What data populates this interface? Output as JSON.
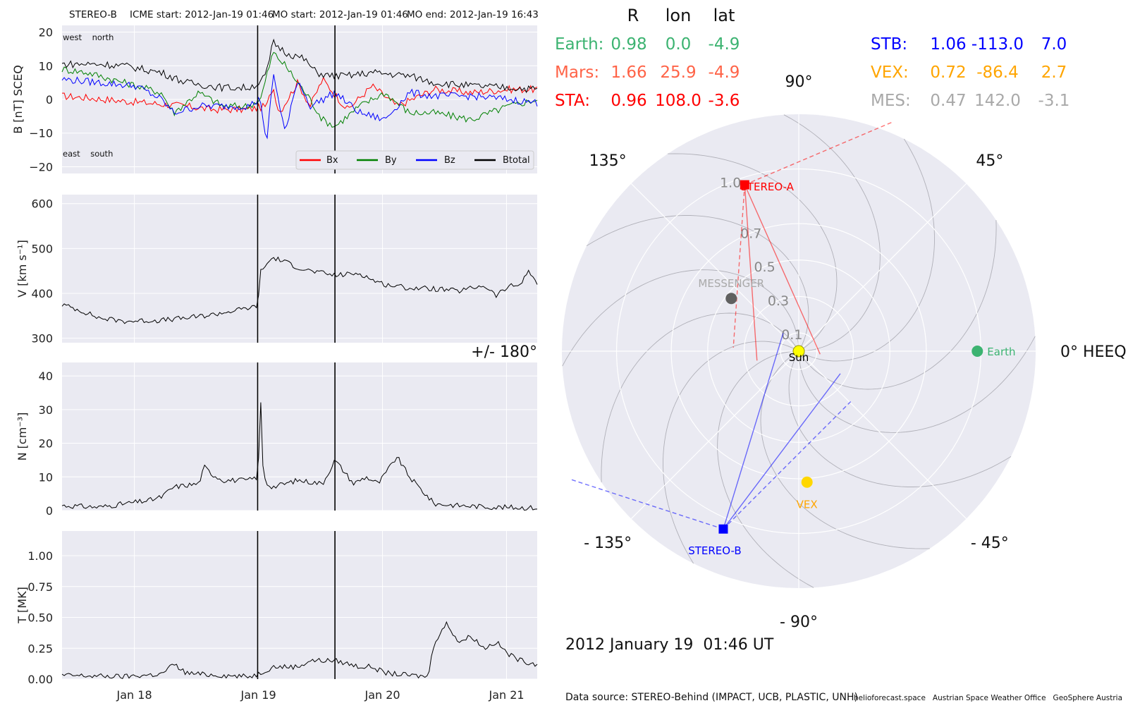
{
  "header": {
    "spacecraft": "STEREO-B",
    "icme_start": "ICME start: 2012-Jan-19 01:46",
    "mo_start": "MO start: 2012-Jan-19 01:46",
    "mo_end": "MO end: 2012-Jan-19 16:43"
  },
  "colors": {
    "bx": "#ff0000",
    "by": "#008000",
    "bz": "#0000ff",
    "bt": "#000000",
    "panel_bg": "#eaeaf2",
    "grid": "#ffffff",
    "sta": "#ff0000",
    "stb": "#0000ff",
    "earth": "#3cb371",
    "mars": "#ff6347",
    "vex": "#ffa500",
    "mes": "#a9a9a9"
  },
  "chart_data": [
    {
      "type": "line",
      "panel": "magnetic field",
      "ylabel": "B [nT] SCEQ",
      "ylim": [
        -22,
        22
      ],
      "yticks": [
        "20",
        "10",
        "0",
        "−10",
        "−20"
      ],
      "ytick_values": [
        20,
        10,
        0,
        -10,
        -20
      ],
      "xlim_days": [
        "2012-01-17 10:00",
        "2012-01-21 06:00"
      ],
      "corner_labels": {
        "top_left": "west    north",
        "bottom_left": "east    south"
      },
      "legend": {
        "position": "lower right",
        "entries": [
          "Bx",
          "By",
          "Bz",
          "Btotal"
        ]
      },
      "series": [
        {
          "name": "Bx",
          "x": [
            0,
            0.2,
            0.5,
            1.0,
            1.2,
            1.5,
            1.65,
            1.7,
            1.75,
            1.9,
            2.0,
            2.1,
            2.3,
            2.5,
            2.7,
            3.0,
            3.3,
            3.6,
            3.83
          ],
          "y": [
            1,
            0.5,
            -0.5,
            -2,
            -3,
            -3,
            -2,
            4,
            -4,
            5,
            -2,
            6,
            -3,
            4,
            -2,
            3,
            2,
            3,
            3
          ]
        },
        {
          "name": "By",
          "x": [
            0,
            0.2,
            0.5,
            0.8,
            0.9,
            1.1,
            1.3,
            1.5,
            1.6,
            1.7,
            1.8,
            1.9,
            2.0,
            2.1,
            2.2,
            2.4,
            2.6,
            2.8,
            3.0,
            3.3,
            3.6,
            3.83
          ],
          "y": [
            9,
            8,
            5,
            2,
            -4,
            2,
            -2,
            -2,
            0,
            14,
            10,
            5,
            0,
            -6,
            -8,
            -2,
            2,
            -4,
            -4,
            -6,
            -2,
            0
          ]
        },
        {
          "name": "Bz",
          "x": [
            0,
            0.3,
            0.6,
            0.8,
            0.9,
            1.1,
            1.3,
            1.5,
            1.6,
            1.65,
            1.7,
            1.8,
            1.9,
            2.0,
            2.2,
            2.4,
            2.6,
            2.8,
            3.0,
            3.3,
            3.6,
            3.83
          ],
          "y": [
            6,
            5,
            4,
            0,
            -4,
            -2,
            -2,
            -2,
            0,
            -14,
            8,
            -10,
            6,
            -2,
            2,
            -4,
            -6,
            2,
            1,
            1,
            0,
            -1
          ]
        },
        {
          "name": "Btotal",
          "x": [
            0,
            0.3,
            0.5,
            0.8,
            1.0,
            1.3,
            1.5,
            1.6,
            1.65,
            1.7,
            1.8,
            1.95,
            2.05,
            2.15,
            2.3,
            2.5,
            2.8,
            3.0,
            3.3,
            3.6,
            3.83
          ],
          "y": [
            10.5,
            10.5,
            10,
            8,
            5,
            3.5,
            3.5,
            5,
            8,
            17,
            14,
            12,
            8,
            7,
            7,
            8,
            7,
            5,
            4,
            3.5,
            3
          ]
        }
      ]
    },
    {
      "type": "line",
      "panel": "speed",
      "ylabel": "V [km s⁻¹]",
      "ylim": [
        290,
        620
      ],
      "yticks": [
        "600",
        "500",
        "400",
        "300"
      ],
      "ytick_values": [
        600,
        500,
        400,
        300
      ],
      "series": [
        {
          "name": "V",
          "x": [
            0,
            0.15,
            0.3,
            0.5,
            0.8,
            1.0,
            1.2,
            1.4,
            1.55,
            1.58,
            1.6,
            1.7,
            1.8,
            1.9,
            2.0,
            2.2,
            2.4,
            2.5,
            2.6,
            2.8,
            3.0,
            3.2,
            3.4,
            3.5,
            3.6,
            3.7,
            3.75,
            3.83
          ],
          "y": [
            375,
            362,
            345,
            338,
            340,
            345,
            352,
            362,
            370,
            375,
            450,
            480,
            470,
            458,
            450,
            440,
            445,
            430,
            420,
            412,
            410,
            405,
            418,
            395,
            415,
            420,
            450,
            425
          ]
        }
      ]
    },
    {
      "type": "line",
      "panel": "density",
      "ylabel": "N [cm⁻³]",
      "ylim": [
        0,
        44
      ],
      "yticks": [
        "40",
        "30",
        "20",
        "10",
        "0"
      ],
      "ytick_values": [
        40,
        30,
        20,
        10,
        0
      ],
      "series": [
        {
          "name": "N",
          "x": [
            0,
            0.3,
            0.5,
            0.7,
            0.8,
            0.9,
            1.1,
            1.15,
            1.2,
            1.3,
            1.5,
            1.58,
            1.6,
            1.62,
            1.65,
            1.7,
            1.9,
            2.1,
            2.2,
            2.35,
            2.45,
            2.55,
            2.7,
            2.8,
            2.85,
            2.95,
            3.0,
            3.2,
            3.5,
            3.83
          ],
          "y": [
            1.5,
            1.0,
            2.0,
            3.0,
            4.0,
            7.0,
            8.0,
            13.0,
            11.0,
            9.0,
            9.0,
            10.0,
            34.0,
            12.0,
            8.0,
            7.0,
            9.0,
            8.0,
            15.0,
            8.0,
            10.0,
            8.0,
            16.0,
            10.0,
            8.0,
            4.0,
            2.0,
            1.5,
            1.0,
            0.8
          ]
        }
      ]
    },
    {
      "type": "line",
      "panel": "temperature",
      "ylabel": "T [MK]",
      "ylim": [
        0,
        1.2
      ],
      "yticks": [
        "1.00",
        "0.75",
        "0.50",
        "0.25",
        "0.00"
      ],
      "ytick_values": [
        1.0,
        0.75,
        0.5,
        0.25,
        0.0
      ],
      "xticks": [
        "Jan 18",
        "Jan 19",
        "Jan 20",
        "Jan 21"
      ],
      "xtick_values": [
        0.583,
        1.583,
        2.583,
        3.583
      ],
      "series": [
        {
          "name": "T",
          "x": [
            0,
            0.5,
            0.8,
            0.9,
            1.0,
            1.1,
            1.3,
            1.5,
            1.58,
            1.7,
            1.9,
            2.0,
            2.2,
            2.4,
            2.5,
            2.6,
            2.8,
            2.95,
            3.0,
            3.1,
            3.2,
            3.3,
            3.4,
            3.5,
            3.6,
            3.7,
            3.83
          ],
          "y": [
            0.03,
            0.02,
            0.04,
            0.12,
            0.05,
            0.04,
            0.03,
            0.02,
            0.04,
            0.1,
            0.1,
            0.15,
            0.15,
            0.1,
            0.1,
            0.05,
            0.03,
            0.02,
            0.3,
            0.45,
            0.3,
            0.35,
            0.25,
            0.3,
            0.2,
            0.15,
            0.12
          ]
        }
      ]
    },
    {
      "type": "scatter",
      "panel": "polar position plot (HEEQ)",
      "radial_ticks": [
        "0.1",
        "0.3",
        "0.5",
        "0.7",
        "1.0"
      ],
      "radial_tick_values": [
        0.1,
        0.3,
        0.5,
        0.7,
        1.0
      ],
      "angle_labels": [
        "90°",
        "45°",
        "0° HEEQ",
        "- 45°",
        "- 90°",
        "- 135°",
        "+/- 180°",
        "135°"
      ],
      "bodies": [
        {
          "name": "Sun",
          "r": 0.0,
          "lon": 0.0
        },
        {
          "name": "Earth",
          "r": 0.98,
          "lon": 0.0
        },
        {
          "name": "STEREO-A",
          "r": 0.96,
          "lon": 108.0
        },
        {
          "name": "STEREO-B",
          "r": 1.06,
          "lon": -113.0
        },
        {
          "name": "VEX",
          "r": 0.72,
          "lon": -86.4
        },
        {
          "name": "MESSENGER",
          "r": 0.47,
          "lon": 142.0
        }
      ]
    }
  ],
  "positions_table": {
    "columns": [
      "R",
      "lon",
      "lat"
    ],
    "left": [
      {
        "name": "Earth:",
        "r": "0.98",
        "lon": "0.0",
        "lat": "-4.9"
      },
      {
        "name": "Mars:",
        "r": "1.66",
        "lon": "25.9",
        "lat": "-4.9"
      },
      {
        "name": "STA:",
        "r": "0.96",
        "lon": "108.0",
        "lat": "-3.6"
      }
    ],
    "right": [
      {
        "name": "STB:",
        "r": "1.06",
        "lon": "-113.0",
        "lat": "7.0"
      },
      {
        "name": "VEX:",
        "r": "0.72",
        "lon": "-86.4",
        "lat": "2.7"
      },
      {
        "name": "MES:",
        "r": "0.47",
        "lon": "142.0",
        "lat": "-3.1"
      }
    ]
  },
  "plot_date": "2012 January 19  01:46 UT",
  "footer": {
    "source": "Data source: STEREO-Behind (IMPACT, UCB, PLASTIC, UNH)",
    "credits": "helioforecast.space   Austrian Space Weather Office   GeoSphere Austria"
  }
}
